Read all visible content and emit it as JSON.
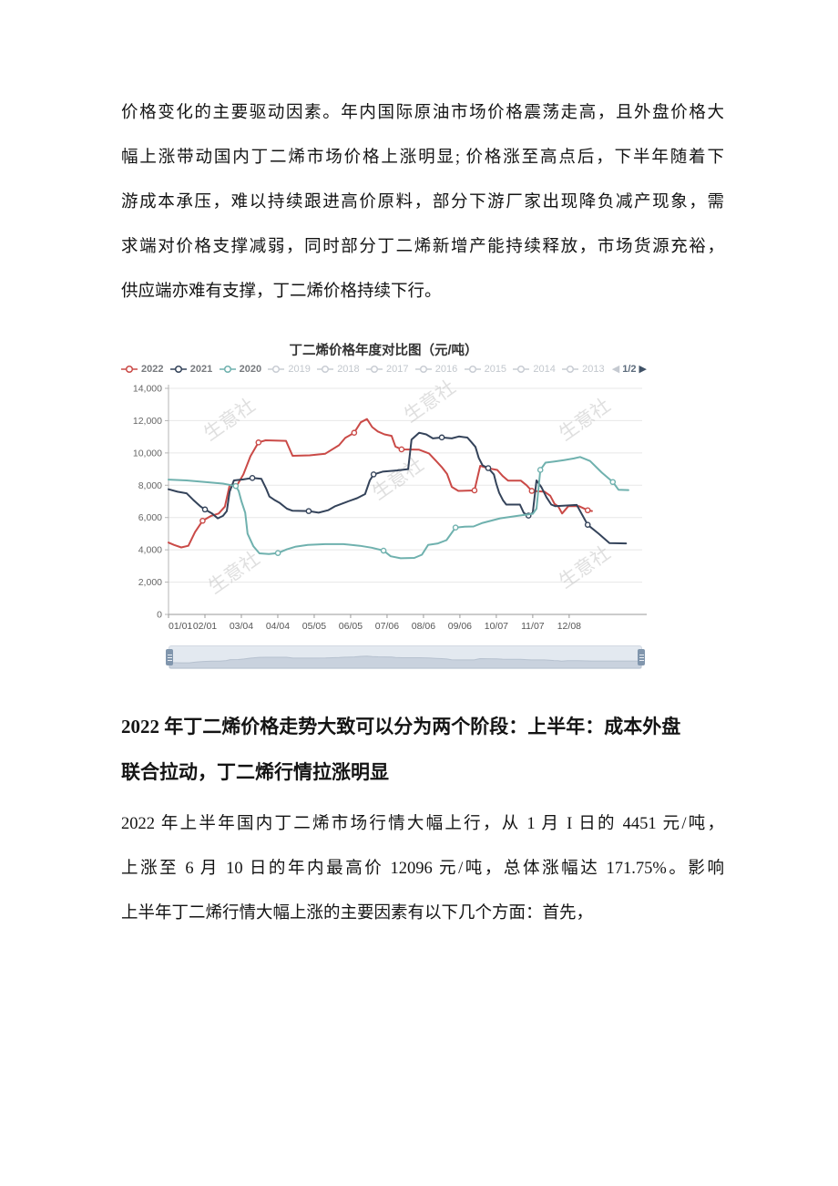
{
  "paragraph1": {
    "lines": [
      "价格变化的主要驱动因素。年内国际原油市场价格震荡走高，且外盘价格大",
      "幅上涨带动国内丁二烯市场价格上涨明显; 价格涨至高点后，下半年随着下",
      "游成本承压，难以持续跟进高价原料，部分下游厂家出现降负减产现象，需",
      "求端对价格支撑减弱，同时部分丁二烯新增产能持续释放，市场货源充裕，",
      "供应端亦难有支撑，丁二烯价格持续下行。"
    ]
  },
  "heading": {
    "lines": [
      "2022 年丁二烯价格走势大致可以分为两个阶段：上半年：成本外盘",
      "联合拉动，丁二烯行情拉涨明显"
    ]
  },
  "paragraph2": {
    "lines": [
      "2022 年上半年国内丁二烯市场行情大幅上行，从 1 月 I 日的 4451 元/吨，",
      "上涨至 6 月 10 日的年内最高价 12096 元/吨，总体涨幅达 171.75%。影响",
      "上半年丁二烯行情大幅上涨的主要因素有以下几个方面：首先，"
    ]
  },
  "chart": {
    "title": "丁二烯价格年度对比图（元/吨）",
    "watermark": "生意社",
    "legend": {
      "items": [
        {
          "label": "2022",
          "color": "#ca4a47",
          "active": true
        },
        {
          "label": "2021",
          "color": "#34435a",
          "active": true
        },
        {
          "label": "2020",
          "color": "#6fb1ae",
          "active": true
        },
        {
          "label": "2019",
          "color": "#c9cdd4",
          "active": false
        },
        {
          "label": "2018",
          "color": "#c9cdd4",
          "active": false
        },
        {
          "label": "2017",
          "color": "#c9cdd4",
          "active": false
        },
        {
          "label": "2016",
          "color": "#c9cdd4",
          "active": false
        },
        {
          "label": "2015",
          "color": "#c9cdd4",
          "active": false
        },
        {
          "label": "2014",
          "color": "#c9cdd4",
          "active": false
        },
        {
          "label": "2013",
          "color": "#c9cdd4",
          "active": false
        }
      ],
      "pagination": {
        "prev": "◀",
        "text": "1/2",
        "next": "▶"
      }
    }
  },
  "chart_data": {
    "type": "line",
    "title": "丁二烯价格年度对比图（元/吨）",
    "xlabel": "",
    "ylabel": "元/吨",
    "ylim": [
      0,
      14000
    ],
    "ytick_step": 2000,
    "yticklabels": [
      "0",
      "2,000",
      "4,000",
      "6,000",
      "8,000",
      "10,000",
      "12,000",
      "14,000"
    ],
    "xticklabels": [
      "01/01",
      "02/01",
      "03/04",
      "04/04",
      "05/05",
      "06/05",
      "07/06",
      "08/06",
      "09/06",
      "10/07",
      "11/07",
      "12/08"
    ],
    "grid": "horizontal",
    "legend_position": "top",
    "series": [
      {
        "name": "2022",
        "color": "#ca4a47",
        "points": [
          [
            0.0,
            4451
          ],
          [
            0.012,
            4300
          ],
          [
            0.027,
            4150
          ],
          [
            0.042,
            4250
          ],
          [
            0.056,
            5100
          ],
          [
            0.072,
            5800
          ],
          [
            0.09,
            6100
          ],
          [
            0.106,
            6250
          ],
          [
            0.119,
            6680
          ],
          [
            0.129,
            8000
          ],
          [
            0.146,
            8060
          ],
          [
            0.158,
            8670
          ],
          [
            0.173,
            9800
          ],
          [
            0.19,
            10650
          ],
          [
            0.205,
            10780
          ],
          [
            0.248,
            10750
          ],
          [
            0.262,
            9820
          ],
          [
            0.298,
            9850
          ],
          [
            0.331,
            9950
          ],
          [
            0.36,
            10480
          ],
          [
            0.373,
            10930
          ],
          [
            0.392,
            11250
          ],
          [
            0.406,
            11900
          ],
          [
            0.419,
            12096
          ],
          [
            0.43,
            11600
          ],
          [
            0.442,
            11330
          ],
          [
            0.456,
            11150
          ],
          [
            0.471,
            11060
          ],
          [
            0.479,
            10400
          ],
          [
            0.492,
            10220
          ],
          [
            0.529,
            10200
          ],
          [
            0.55,
            9970
          ],
          [
            0.565,
            9500
          ],
          [
            0.577,
            9120
          ],
          [
            0.588,
            8700
          ],
          [
            0.598,
            7900
          ],
          [
            0.612,
            7650
          ],
          [
            0.646,
            7680
          ],
          [
            0.658,
            9200
          ],
          [
            0.675,
            9050
          ],
          [
            0.694,
            8950
          ],
          [
            0.706,
            8560
          ],
          [
            0.717,
            8280
          ],
          [
            0.744,
            8280
          ],
          [
            0.756,
            8000
          ],
          [
            0.767,
            7650
          ],
          [
            0.794,
            7600
          ],
          [
            0.806,
            7350
          ],
          [
            0.815,
            6850
          ],
          [
            0.823,
            6680
          ],
          [
            0.831,
            6250
          ],
          [
            0.844,
            6700
          ],
          [
            0.867,
            6700
          ],
          [
            0.885,
            6450
          ],
          [
            0.894,
            6400
          ]
        ]
      },
      {
        "name": "2021",
        "color": "#34435a",
        "points": [
          [
            0.0,
            7750
          ],
          [
            0.019,
            7600
          ],
          [
            0.038,
            7500
          ],
          [
            0.052,
            7100
          ],
          [
            0.067,
            6700
          ],
          [
            0.077,
            6500
          ],
          [
            0.092,
            6250
          ],
          [
            0.104,
            5950
          ],
          [
            0.115,
            6100
          ],
          [
            0.123,
            6400
          ],
          [
            0.129,
            7600
          ],
          [
            0.138,
            8300
          ],
          [
            0.158,
            8360
          ],
          [
            0.177,
            8450
          ],
          [
            0.196,
            8400
          ],
          [
            0.206,
            7800
          ],
          [
            0.213,
            7300
          ],
          [
            0.223,
            7100
          ],
          [
            0.235,
            6900
          ],
          [
            0.25,
            6550
          ],
          [
            0.262,
            6420
          ],
          [
            0.296,
            6400
          ],
          [
            0.317,
            6300
          ],
          [
            0.337,
            6450
          ],
          [
            0.352,
            6700
          ],
          [
            0.379,
            7000
          ],
          [
            0.398,
            7200
          ],
          [
            0.415,
            7450
          ],
          [
            0.425,
            8300
          ],
          [
            0.433,
            8670
          ],
          [
            0.452,
            8840
          ],
          [
            0.483,
            8920
          ],
          [
            0.506,
            9000
          ],
          [
            0.513,
            10820
          ],
          [
            0.529,
            11250
          ],
          [
            0.544,
            11150
          ],
          [
            0.558,
            10900
          ],
          [
            0.577,
            10960
          ],
          [
            0.598,
            10900
          ],
          [
            0.613,
            11020
          ],
          [
            0.631,
            10950
          ],
          [
            0.64,
            10650
          ],
          [
            0.648,
            10370
          ],
          [
            0.655,
            9690
          ],
          [
            0.663,
            9230
          ],
          [
            0.675,
            9060
          ],
          [
            0.687,
            8670
          ],
          [
            0.692,
            8100
          ],
          [
            0.698,
            7530
          ],
          [
            0.706,
            7080
          ],
          [
            0.713,
            6800
          ],
          [
            0.742,
            6800
          ],
          [
            0.75,
            6290
          ],
          [
            0.76,
            6120
          ],
          [
            0.769,
            6300
          ],
          [
            0.777,
            8300
          ],
          [
            0.787,
            7900
          ],
          [
            0.798,
            7250
          ],
          [
            0.808,
            6800
          ],
          [
            0.817,
            6700
          ],
          [
            0.862,
            6780
          ],
          [
            0.885,
            5550
          ],
          [
            0.908,
            5000
          ],
          [
            0.931,
            4420
          ],
          [
            0.966,
            4400
          ]
        ]
      },
      {
        "name": "2020",
        "color": "#6fb1ae",
        "points": [
          [
            0.0,
            8350
          ],
          [
            0.038,
            8300
          ],
          [
            0.077,
            8200
          ],
          [
            0.115,
            8100
          ],
          [
            0.133,
            8000
          ],
          [
            0.142,
            7950
          ],
          [
            0.148,
            7650
          ],
          [
            0.154,
            7000
          ],
          [
            0.162,
            6300
          ],
          [
            0.167,
            5000
          ],
          [
            0.179,
            4230
          ],
          [
            0.192,
            3780
          ],
          [
            0.212,
            3740
          ],
          [
            0.231,
            3800
          ],
          [
            0.25,
            4030
          ],
          [
            0.269,
            4200
          ],
          [
            0.294,
            4300
          ],
          [
            0.331,
            4350
          ],
          [
            0.369,
            4350
          ],
          [
            0.404,
            4250
          ],
          [
            0.429,
            4130
          ],
          [
            0.454,
            3950
          ],
          [
            0.469,
            3600
          ],
          [
            0.49,
            3480
          ],
          [
            0.519,
            3500
          ],
          [
            0.535,
            3700
          ],
          [
            0.548,
            4300
          ],
          [
            0.569,
            4400
          ],
          [
            0.587,
            4600
          ],
          [
            0.606,
            5380
          ],
          [
            0.625,
            5430
          ],
          [
            0.644,
            5450
          ],
          [
            0.663,
            5670
          ],
          [
            0.7,
            5950
          ],
          [
            0.74,
            6120
          ],
          [
            0.769,
            6230
          ],
          [
            0.777,
            6550
          ],
          [
            0.785,
            8950
          ],
          [
            0.796,
            9400
          ],
          [
            0.815,
            9470
          ],
          [
            0.835,
            9560
          ],
          [
            0.856,
            9660
          ],
          [
            0.869,
            9750
          ],
          [
            0.89,
            9500
          ],
          [
            0.915,
            8780
          ],
          [
            0.938,
            8200
          ],
          [
            0.95,
            7720
          ],
          [
            0.971,
            7700
          ]
        ]
      }
    ]
  }
}
